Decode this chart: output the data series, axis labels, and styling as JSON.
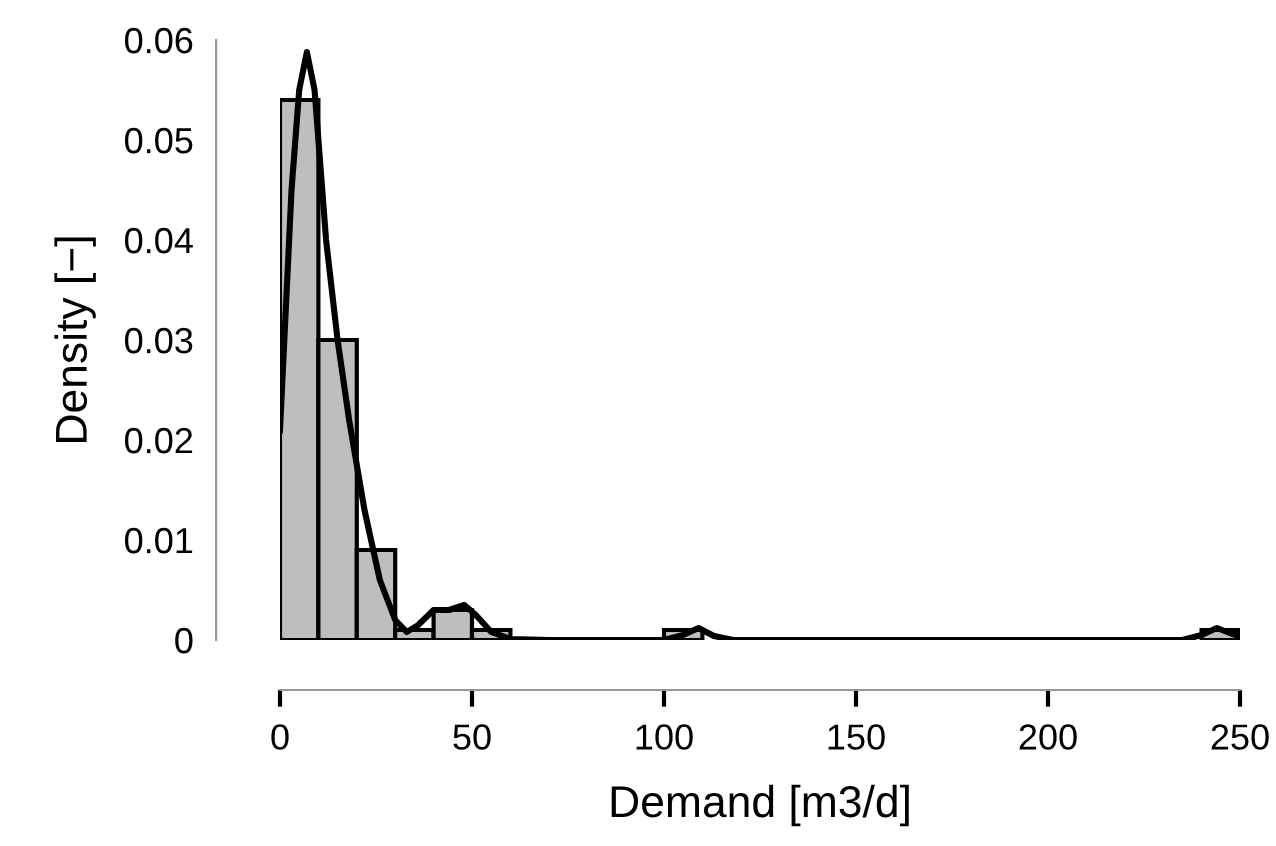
{
  "chart_data": {
    "type": "histogram",
    "xlabel": "Demand [m3/d]",
    "ylabel": "Density [−]",
    "bins": [
      0,
      10,
      20,
      30,
      40,
      50,
      60,
      70,
      80,
      90,
      100,
      110,
      120,
      130,
      140,
      150,
      160,
      170,
      180,
      190,
      200,
      210,
      220,
      230,
      240,
      250
    ],
    "values": [
      0.054,
      0.03,
      0.009,
      0.001,
      0.003,
      0.001,
      0,
      0,
      0,
      0,
      0.001,
      0,
      0,
      0,
      0,
      0,
      0,
      0,
      0,
      0,
      0,
      0,
      0,
      0,
      0.001
    ],
    "color": "#bebebe",
    "series": [
      {
        "type": "line",
        "color": "#000000",
        "x": [
          0,
          3,
          5,
          7,
          9,
          12,
          15,
          18,
          22,
          26,
          30,
          33,
          36,
          40,
          44,
          48,
          51,
          55,
          60,
          70,
          100,
          105,
          109,
          113,
          118,
          235,
          240,
          244,
          248,
          250
        ],
        "values": [
          0.021,
          0.045,
          0.055,
          0.0588,
          0.055,
          0.04,
          0.03,
          0.022,
          0.013,
          0.006,
          0.002,
          0.0008,
          0.0015,
          0.003,
          0.003,
          0.0035,
          0.0025,
          0.0008,
          0.0001,
          0,
          0,
          0.0005,
          0.0012,
          0.0004,
          0,
          0,
          0.0005,
          0.0012,
          0.0006,
          0.0004
        ]
      }
    ],
    "xlim": [
      0,
      250
    ],
    "ylim": [
      0,
      0.06
    ],
    "xticks": [
      0,
      50,
      100,
      150,
      200,
      250
    ],
    "yticks": [
      0,
      0.01,
      0.02,
      0.03,
      0.04,
      0.05,
      0.06
    ],
    "grid": false
  }
}
